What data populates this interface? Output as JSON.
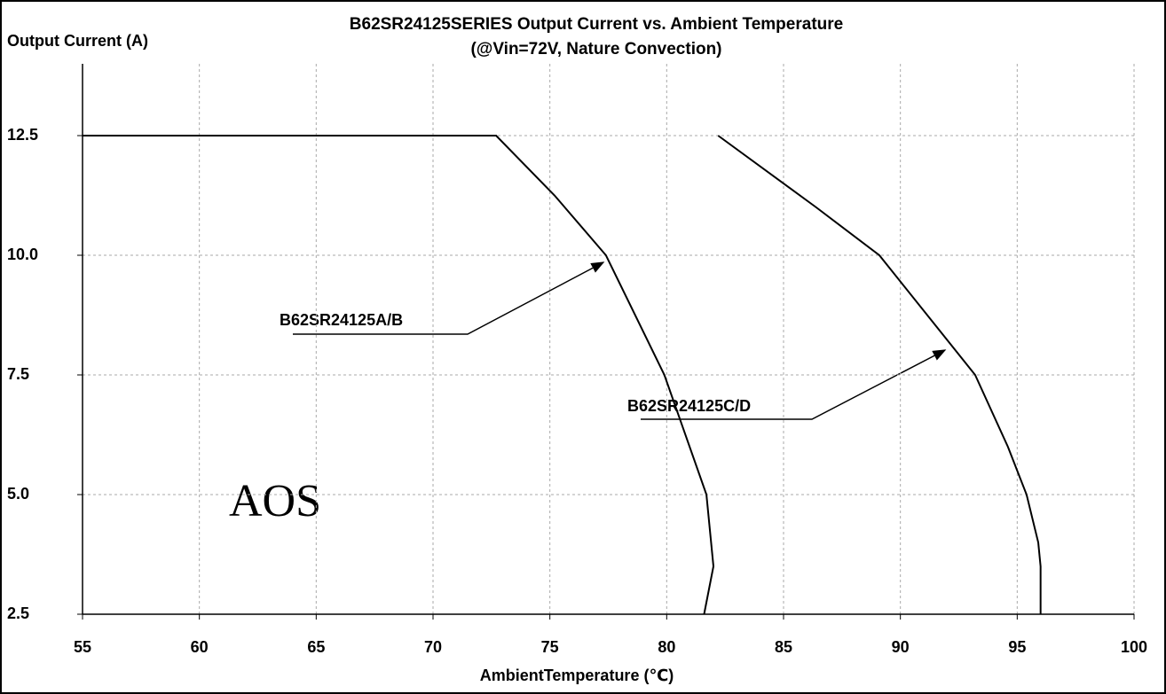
{
  "chart_data": {
    "type": "line",
    "title": "B62SR24125SERIES Output Current vs. Ambient Temperature",
    "subtitle": "(@Vin=72V, Nature Convection)",
    "y_label": "Output Current (A)",
    "x_label": "AmbientTemperature (℃)",
    "xlim": [
      55,
      100
    ],
    "xticks": [
      55,
      60,
      65,
      70,
      75,
      80,
      85,
      90,
      95,
      100
    ],
    "ylim": [
      2.5,
      14
    ],
    "yticks": [
      {
        "value": 2.5,
        "label": "2.5"
      },
      {
        "value": 5,
        "label": "5.0"
      },
      7.5,
      {
        "value": 10,
        "label": "10.0"
      },
      12.5
    ],
    "grid": true,
    "series": [
      {
        "name": "B62SR24125A/B",
        "color": "#000000",
        "x": [
          55,
          72.7,
          75.2,
          77.4,
          79.9,
          81.7,
          82.0,
          81.6
        ],
        "values": [
          12.5,
          12.5,
          11.25,
          10.0,
          7.5,
          5.0,
          3.5,
          2.5
        ]
      },
      {
        "name": "B62SR24125C/D",
        "color": "#000000",
        "x": [
          82.2,
          86.4,
          89.1,
          93.2,
          94.6,
          95.4,
          95.9,
          96.0,
          96.0
        ],
        "values": [
          12.5,
          11.0,
          10.0,
          7.5,
          6.0,
          5.0,
          4.0,
          3.5,
          2.5
        ]
      }
    ],
    "watermark": "AOS"
  }
}
